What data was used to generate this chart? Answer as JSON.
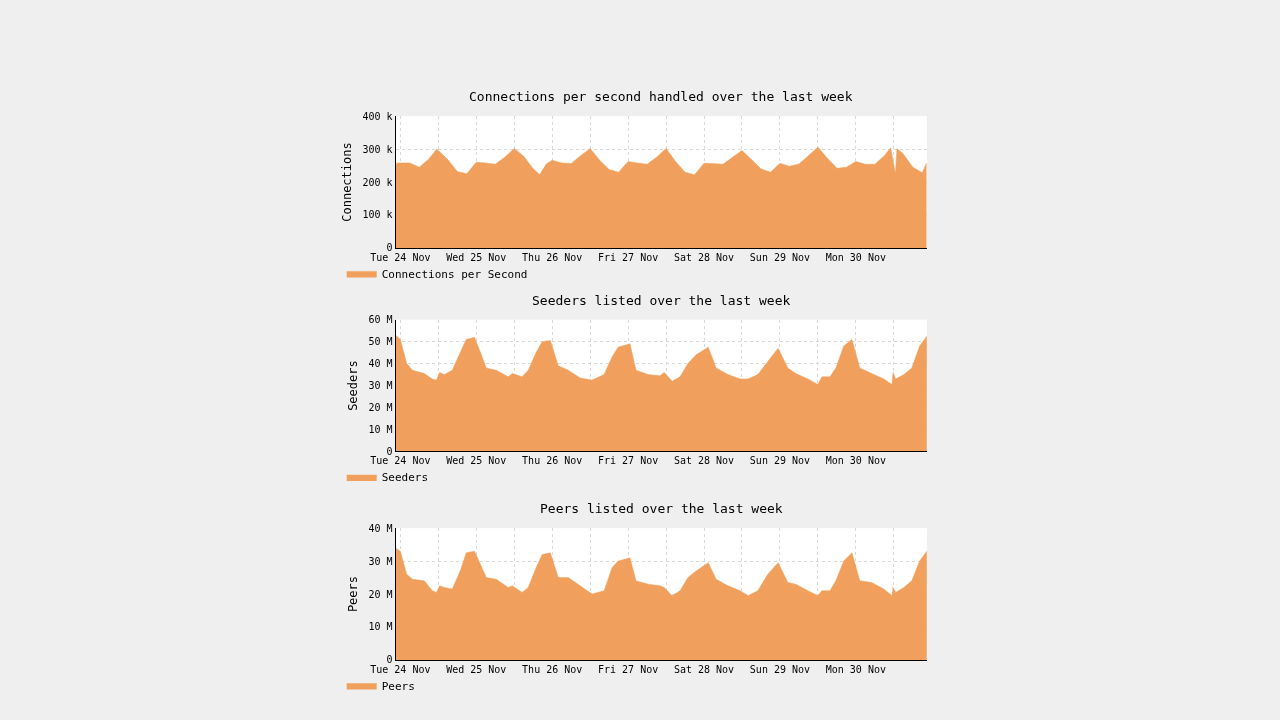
{
  "chart_data": [
    {
      "type": "area",
      "title": "Connections per second handled over the last week",
      "ylabel": "Connections",
      "x": [
        "--11-24T10:30",
        "--11-24T12:00",
        "--11-24T15:00",
        "--11-24T18:00",
        "--11-24T21:00",
        "--11-24T23:30",
        "--11-25T03:00",
        "--11-25T06:00",
        "--11-25T09:00",
        "--11-25T12:00",
        "--11-25T15:00",
        "--11-25T18:00",
        "--11-25T21:00",
        "--11-26T00:00",
        "--11-26T03:00",
        "--11-26T06:00",
        "--11-26T08:00",
        "--11-26T09:00",
        "--11-26T10:00",
        "--11-26T12:00",
        "--11-26T15:00",
        "--11-26T18:00",
        "--11-26T21:00",
        "--11-27T00:00",
        "--11-27T03:00",
        "--11-27T06:00",
        "--11-27T09:00",
        "--11-27T12:00",
        "--11-27T15:00",
        "--11-27T18:00",
        "--11-27T21:00",
        "--11-28T00:00",
        "--11-28T03:00",
        "--11-28T06:00",
        "--11-28T09:00",
        "--11-28T12:00",
        "--11-28T15:00",
        "--11-28T18:00",
        "--11-28T21:00",
        "--11-29T00:00",
        "--11-29T03:00",
        "--11-29T06:00",
        "--11-29T09:00",
        "--11-29T12:00",
        "--11-29T15:00",
        "--11-29T18:00",
        "--11-29T21:00",
        "--11-30T00:00",
        "--11-30T03:00",
        "--11-30T06:00",
        "--11-30T09:00",
        "--11-30T12:00",
        "--11-30T15:00",
        "--11-30T18:00",
        "--11-30T21:00",
        "--11-30T23:00",
        "--12-01T00:30",
        "--12-01T01:00",
        "--12-01T03:00",
        "--12-01T06:00",
        "--12-01T09:00",
        "--12-01T10:20"
      ],
      "series": [
        {
          "name": "Connections per Second",
          "color": "#f0a05c",
          "values": [
            257,
            258,
            258,
            245,
            270,
            300,
            268,
            232,
            225,
            260,
            258,
            254,
            275,
            302,
            278,
            240,
            223,
            null,
            254,
            266,
            258,
            256,
            280,
            302,
            266,
            238,
            230,
            262,
            258,
            254,
            275,
            302,
            262,
            230,
            222,
            257,
            256,
            254,
            275,
            296,
            268,
            240,
            230,
            257,
            248,
            255,
            280,
            306,
            272,
            242,
            245,
            262,
            254,
            254,
            280,
            304,
            225,
            302,
            285,
            245,
            228,
            258
          ]
        }
      ],
      "xlim": [
        "--11-24T10:30",
        "--12-01T10:30"
      ],
      "xticks": [
        {
          "value": "--11-24T12:00",
          "label": "Tue 24 Nov"
        },
        {
          "value": "--11-25T00:00",
          "label": null
        },
        {
          "value": "--11-25T12:00",
          "label": "Wed 25 Nov"
        },
        {
          "value": "--11-26T00:00",
          "label": null
        },
        {
          "value": "--11-26T12:00",
          "label": "Thu 26 Nov"
        },
        {
          "value": "--11-27T00:00",
          "label": null
        },
        {
          "value": "--11-27T12:00",
          "label": "Fri 27 Nov"
        },
        {
          "value": "--11-28T00:00",
          "label": null
        },
        {
          "value": "--11-28T12:00",
          "label": "Sat 28 Nov"
        },
        {
          "value": "--11-29T00:00",
          "label": null
        },
        {
          "value": "--11-29T12:00",
          "label": "Sun 29 Nov"
        },
        {
          "value": "--11-30T00:00",
          "label": null
        },
        {
          "value": "--11-30T12:00",
          "label": "Mon 30 Nov"
        },
        {
          "value": "--12-01T00:00",
          "label": null
        }
      ],
      "ylim": [
        0,
        400
      ],
      "yticks": [
        0,
        {
          "value": 100,
          "label": "100 k"
        },
        {
          "value": 200,
          "label": "200 k"
        },
        {
          "value": 300,
          "label": "300 k"
        },
        {
          "value": 400,
          "label": "400 k"
        }
      ],
      "grid": true,
      "legend": "bottom left"
    },
    {
      "type": "area",
      "title": "Seeders listed over the last week",
      "ylabel": "Seeders",
      "x": [
        "--11-24T10:30",
        "--11-24T12:00",
        "--11-24T14:00",
        "--11-24T15:50",
        "--11-24T19:35",
        "--11-24T22:05",
        "--11-24T23:25",
        "--11-25T00:25",
        "--11-25T01:55",
        "--11-25T04:25",
        "--11-25T06:55",
        "--11-25T08:50",
        "--11-25T11:25",
        "--11-25T13:20",
        "--11-25T15:10",
        "--11-25T18:20",
        "--11-25T22:05",
        "--11-25T23:25",
        "--11-26T02:30",
        "--11-26T04:25",
        "--11-26T06:55",
        "--11-26T08:50",
        "--11-26T11:25",
        "--11-26T13:55",
        "--11-26T17:05",
        "--11-26T20:50",
        "--11-27T00:35",
        "--11-27T04:25",
        "--11-27T06:55",
        "--11-27T08:50",
        "--11-27T12:35",
        "--11-27T14:30",
        "--11-27T18:20",
        "--11-27T22:05",
        "--11-27T23:25",
        "--11-28T01:55",
        "--11-28T04:25",
        "--11-28T06:55",
        "--11-28T09:30",
        "--11-28T13:20",
        "--11-28T15:50",
        "--11-28T19:35",
        "--11-28T23:25",
        "--11-29T01:55",
        "--11-29T05:00",
        "--11-29T08:10",
        "--11-29T11:25",
        "--11-29T14:30",
        "--11-29T17:00",
        "--11-29T20:50",
        "--11-30T00:00",
        "--11-30T01:15",
        "--11-30T03:50",
        "--11-30T05:40",
        "--11-30T08:10",
        "--11-30T10:45",
        "--11-30T13:15",
        "--11-30T17:00",
        "--11-30T20:50",
        "--11-30T23:25",
        "--11-30T23:45",
        "--12-01T00:35",
        "--12-01T03:10",
        "--12-01T05:40",
        "--12-01T08:10",
        "--12-01T10:25"
      ],
      "series": [
        {
          "name": "Seeders",
          "color": "#f0a05c",
          "values": [
            53,
            51,
            40,
            37,
            35.5,
            33,
            32.5,
            36,
            35,
            37,
            45,
            51,
            52,
            45,
            38,
            37,
            34,
            35.5,
            34,
            37,
            45,
            50,
            50.5,
            39,
            37,
            33.5,
            32.5,
            35,
            43,
            47.5,
            49,
            37,
            35,
            34.5,
            36,
            32,
            34,
            40,
            44,
            47.5,
            38,
            35,
            33,
            33,
            35,
            41,
            47,
            38,
            35.5,
            33,
            30.5,
            34,
            34,
            38,
            48,
            51,
            38,
            35.5,
            33,
            30.5,
            36,
            33,
            35,
            38,
            48,
            52.5
          ]
        }
      ],
      "xlim": [
        "--11-24T10:30",
        "--12-01T10:30"
      ],
      "xticks": [
        {
          "value": "--11-24T12:00",
          "label": "Tue 24 Nov"
        },
        {
          "value": "--11-25T00:00",
          "label": null
        },
        {
          "value": "--11-25T12:00",
          "label": "Wed 25 Nov"
        },
        {
          "value": "--11-26T00:00",
          "label": null
        },
        {
          "value": "--11-26T12:00",
          "label": "Thu 26 Nov"
        },
        {
          "value": "--11-27T00:00",
          "label": null
        },
        {
          "value": "--11-27T12:00",
          "label": "Fri 27 Nov"
        },
        {
          "value": "--11-28T00:00",
          "label": null
        },
        {
          "value": "--11-28T12:00",
          "label": "Sat 28 Nov"
        },
        {
          "value": "--11-29T00:00",
          "label": null
        },
        {
          "value": "--11-29T12:00",
          "label": "Sun 29 Nov"
        },
        {
          "value": "--11-30T00:00",
          "label": null
        },
        {
          "value": "--11-30T12:00",
          "label": "Mon 30 Nov"
        },
        {
          "value": "--12-01T00:00",
          "label": null
        }
      ],
      "ylim": [
        0,
        60
      ],
      "yticks": [
        0,
        {
          "value": 10,
          "label": "10 M"
        },
        {
          "value": 20,
          "label": "20 M"
        },
        {
          "value": 30,
          "label": "30 M"
        },
        {
          "value": 40,
          "label": "40 M"
        },
        {
          "value": 50,
          "label": "50 M"
        },
        {
          "value": 60,
          "label": "60 M"
        }
      ],
      "grid": true,
      "legend": "bottom left"
    },
    {
      "type": "area",
      "title": "Peers listed over the last week",
      "ylabel": "Peers",
      "x": [
        "--11-24T10:30",
        "--11-24T12:00",
        "--11-24T14:00",
        "--11-24T15:50",
        "--11-24T19:35",
        "--11-24T22:05",
        "--11-24T23:25",
        "--11-25T00:25",
        "--11-25T01:55",
        "--11-25T04:25",
        "--11-25T06:55",
        "--11-25T08:50",
        "--11-25T11:25",
        "--11-25T13:20",
        "--11-25T15:10",
        "--11-25T18:20",
        "--11-25T22:05",
        "--11-25T23:25",
        "--11-26T02:30",
        "--11-26T04:25",
        "--11-26T06:55",
        "--11-26T08:50",
        "--11-26T11:25",
        "--11-26T13:55",
        "--11-26T17:05",
        "--11-26T20:50",
        "--11-27T00:35",
        "--11-27T04:25",
        "--11-27T06:55",
        "--11-27T08:50",
        "--11-27T12:35",
        "--11-27T14:30",
        "--11-27T18:20",
        "--11-27T22:05",
        "--11-27T23:25",
        "--11-28T01:55",
        "--11-28T04:25",
        "--11-28T06:55",
        "--11-28T09:30",
        "--11-28T13:20",
        "--11-28T15:50",
        "--11-28T19:35",
        "--11-28T23:25",
        "--11-29T01:55",
        "--11-29T05:00",
        "--11-29T08:10",
        "--11-29T11:25",
        "--11-29T14:30",
        "--11-29T17:00",
        "--11-29T20:50",
        "--11-30T00:00",
        "--11-30T01:15",
        "--11-30T03:50",
        "--11-30T05:40",
        "--11-30T08:10",
        "--11-30T10:45",
        "--11-30T13:15",
        "--11-30T17:00",
        "--11-30T20:50",
        "--11-30T23:25",
        "--11-30T23:45",
        "--12-01T00:35",
        "--12-01T03:10",
        "--12-01T05:40",
        "--12-01T08:10",
        "--12-01T10:25"
      ],
      "series": [
        {
          "name": "Peers",
          "color": "#f0a05c",
          "values": [
            34,
            33,
            26,
            24.5,
            24,
            21,
            20.5,
            22.5,
            22,
            21.5,
            27,
            32.5,
            33,
            29,
            25,
            24.5,
            22,
            22.5,
            20.5,
            22,
            28,
            32,
            32.5,
            25,
            25,
            22.5,
            20,
            21,
            28,
            30,
            31,
            24,
            23,
            22.5,
            22,
            19.5,
            21,
            25,
            27,
            29.5,
            24.5,
            22.5,
            21,
            19.5,
            21,
            26,
            29.5,
            23.5,
            23,
            21,
            19.5,
            21,
            21,
            24,
            30,
            32.5,
            24,
            23.5,
            21.5,
            19.5,
            22,
            20.5,
            22,
            24,
            30,
            33
          ]
        }
      ],
      "xlim": [
        "--11-24T10:30",
        "--12-01T10:30"
      ],
      "xticks": [
        {
          "value": "--11-24T12:00",
          "label": "Tue 24 Nov"
        },
        {
          "value": "--11-25T00:00",
          "label": null
        },
        {
          "value": "--11-25T12:00",
          "label": "Wed 25 Nov"
        },
        {
          "value": "--11-26T00:00",
          "label": null
        },
        {
          "value": "--11-26T12:00",
          "label": "Thu 26 Nov"
        },
        {
          "value": "--11-27T00:00",
          "label": null
        },
        {
          "value": "--11-27T12:00",
          "label": "Fri 27 Nov"
        },
        {
          "value": "--11-28T00:00",
          "label": null
        },
        {
          "value": "--11-28T12:00",
          "label": "Sat 28 Nov"
        },
        {
          "value": "--11-29T00:00",
          "label": null
        },
        {
          "value": "--11-29T12:00",
          "label": "Sun 29 Nov"
        },
        {
          "value": "--11-30T00:00",
          "label": null
        },
        {
          "value": "--11-30T12:00",
          "label": "Mon 30 Nov"
        },
        {
          "value": "--12-01T00:00",
          "label": null
        }
      ],
      "ylim": [
        0,
        40
      ],
      "yticks": [
        0,
        {
          "value": 10,
          "label": "10 M"
        },
        {
          "value": 20,
          "label": "20 M"
        },
        {
          "value": 30,
          "label": "30 M"
        },
        {
          "value": 40,
          "label": "40 M"
        }
      ],
      "grid": true,
      "legend": "bottom left"
    }
  ]
}
